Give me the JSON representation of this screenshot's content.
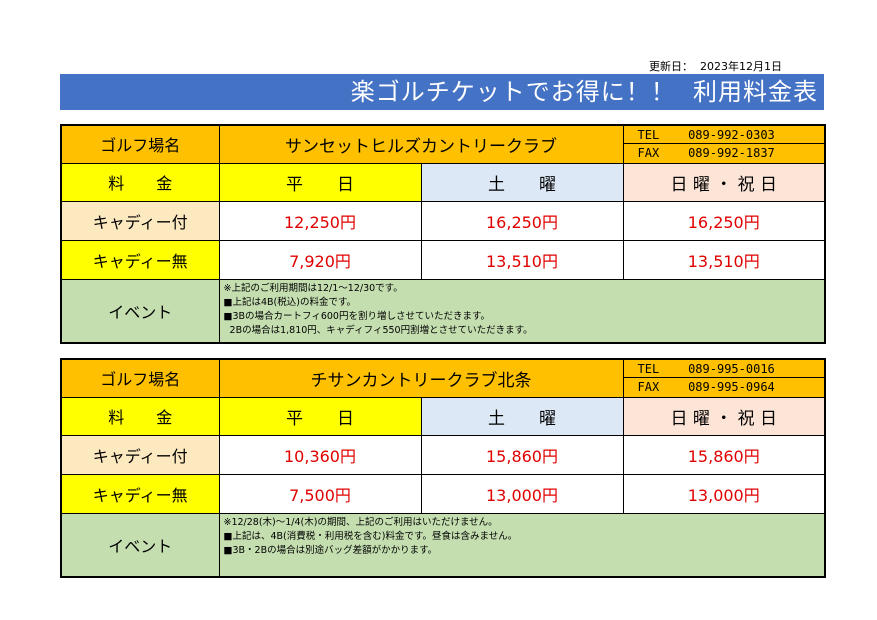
{
  "updated": "更新日：  2023年12月1日",
  "banner": "楽ゴルチケットでお得に！！  利用料金表",
  "courses": [
    {
      "name_label": "ゴルフ場名",
      "club_name": "サンセットヒルズカントリークラブ",
      "tel": "TEL    089-992-0303",
      "fax": "FAX    089-992-1837",
      "header": {
        "label": "料　　金",
        "weekday": "平　　日",
        "saturday": "土　　曜",
        "holiday": "日 曜 ・ 祝 日"
      },
      "rows": [
        {
          "label": "キャディー付",
          "weekday": "12,250円",
          "saturday": "16,250円",
          "holiday": "16,250円"
        },
        {
          "label": "キャディー無",
          "weekday": "7,920円",
          "saturday": "13,510円",
          "holiday": "13,510円"
        }
      ],
      "event_label": "イベント",
      "notes": [
        "※上記のご利用期間は12/1～12/30です。",
        "■上記は4B(税込)の料金です。",
        "■3Bの場合カートフィ600円を割り増しさせていただきます。",
        "  2Bの場合は1,810円、キャディフィ550円割増とさせていただきます。"
      ]
    },
    {
      "name_label": "ゴルフ場名",
      "club_name": "チサンカントリークラブ北条",
      "tel": "TEL    089-995-0016",
      "fax": "FAX    089-995-0964",
      "header": {
        "label": "料　　金",
        "weekday": "平　　日",
        "saturday": "土　　曜",
        "holiday": "日 曜 ・ 祝 日"
      },
      "rows": [
        {
          "label": "キャディー付",
          "weekday": "10,360円",
          "saturday": "15,860円",
          "holiday": "15,860円"
        },
        {
          "label": "キャディー無",
          "weekday": "7,500円",
          "saturday": "13,000円",
          "holiday": "13,000円"
        }
      ],
      "event_label": "イベント",
      "notes": [
        "※12/28(木)～1/4(木)の期間、上記のご利用はいただけません。",
        "■上記は、4B(消費税・利用税を含む)料金です。昼食は含みません。",
        "■3B・2Bの場合は別途バッグ差額がかかります。"
      ]
    }
  ]
}
